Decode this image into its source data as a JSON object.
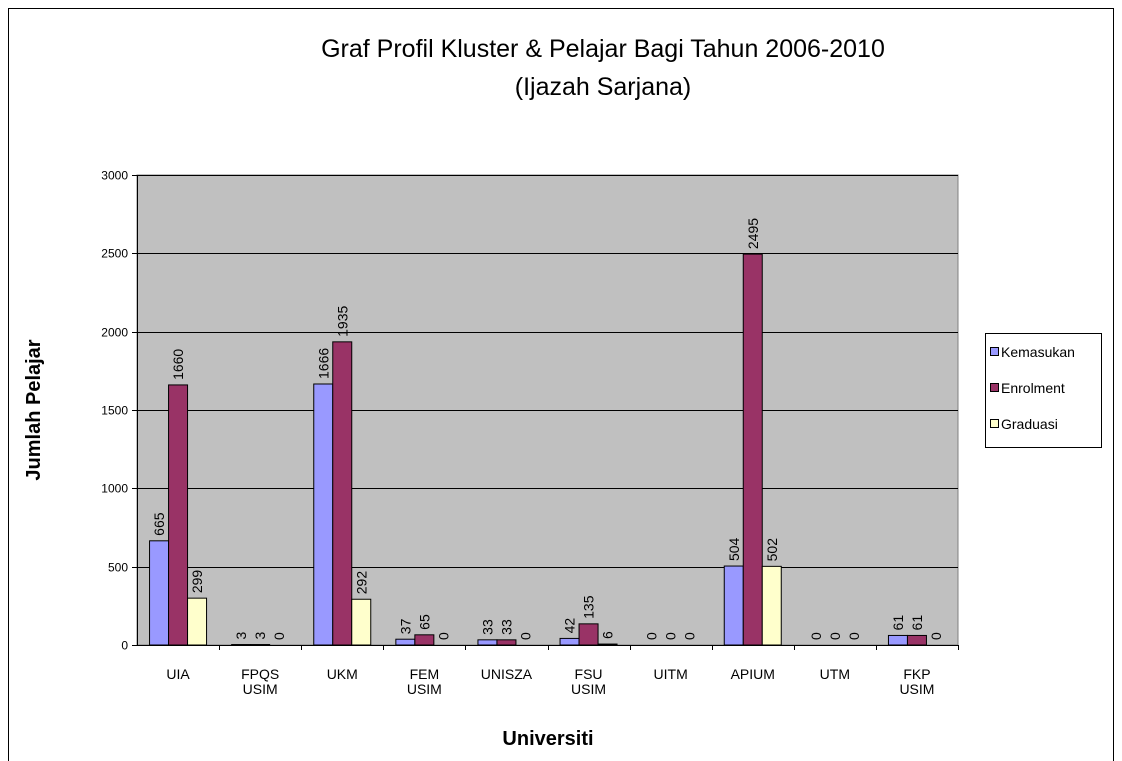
{
  "chart_data": {
    "type": "bar",
    "title": "Graf Profil Kluster & Pelajar Bagi Tahun 2006-2010\n(Ijazah Sarjana)",
    "x_label": "Universiti",
    "y_label": "Jumlah Pelajar",
    "categories": [
      "UIA",
      "FPQS\nUSIM",
      "UKM",
      "FEM\nUSIM",
      "UNISZA",
      "FSU\nUSIM",
      "UITM",
      "APIUM",
      "UTM",
      "FKP\nUSIM"
    ],
    "series": [
      {
        "name": "Kemasukan",
        "color": "#9999ff",
        "values": [
          665,
          3,
          1666,
          37,
          33,
          42,
          0,
          504,
          0,
          61
        ]
      },
      {
        "name": "Enrolment",
        "color": "#993366",
        "values": [
          1660,
          3,
          1935,
          65,
          33,
          135,
          0,
          2495,
          0,
          61
        ]
      },
      {
        "name": "Graduasi",
        "color": "#ffffcc",
        "values": [
          299,
          0,
          292,
          0,
          0,
          6,
          0,
          502,
          0,
          0
        ]
      }
    ],
    "ylim": [
      0,
      3000
    ],
    "yticks": [
      0,
      500,
      1000,
      1500,
      2000,
      2500,
      3000
    ],
    "grid": true,
    "legend": "right",
    "plot_background": "#c0c0c0"
  }
}
